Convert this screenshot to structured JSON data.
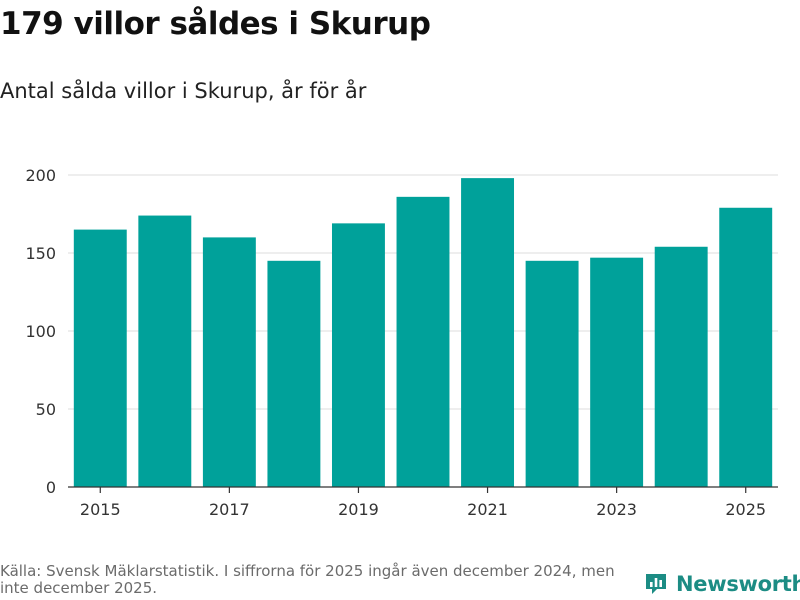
{
  "title": "179 villor såldes i Skurup",
  "subtitle": "Antal sålda villor i Skurup, år för år",
  "footer": {
    "source": "Källa: Svensk Mäklarstatistik. I siffrorna för 2025 ingår även december 2024, men inte december 2025."
  },
  "brand": {
    "name": "Newsworthy",
    "color": "#1c8c84"
  },
  "chart_data": {
    "type": "bar",
    "title": "179 villor såldes i Skurup",
    "subtitle": "Antal sålda villor i Skurup, år för år",
    "xlabel": "",
    "ylabel": "",
    "categories": [
      "2015",
      "2016",
      "2017",
      "2018",
      "2019",
      "2020",
      "2021",
      "2022",
      "2023",
      "2024",
      "2025"
    ],
    "values": [
      165,
      174,
      160,
      145,
      169,
      186,
      198,
      145,
      147,
      154,
      179
    ],
    "x_tick_labels": [
      "2015",
      "2017",
      "2019",
      "2021",
      "2023",
      "2025"
    ],
    "y_ticks": [
      0,
      50,
      100,
      150,
      200
    ],
    "y_tick_labels": [
      "0",
      "50",
      "100",
      "150",
      "200"
    ],
    "ylim": [
      0,
      200
    ],
    "grid": true,
    "bar_color": "#00a19a"
  }
}
